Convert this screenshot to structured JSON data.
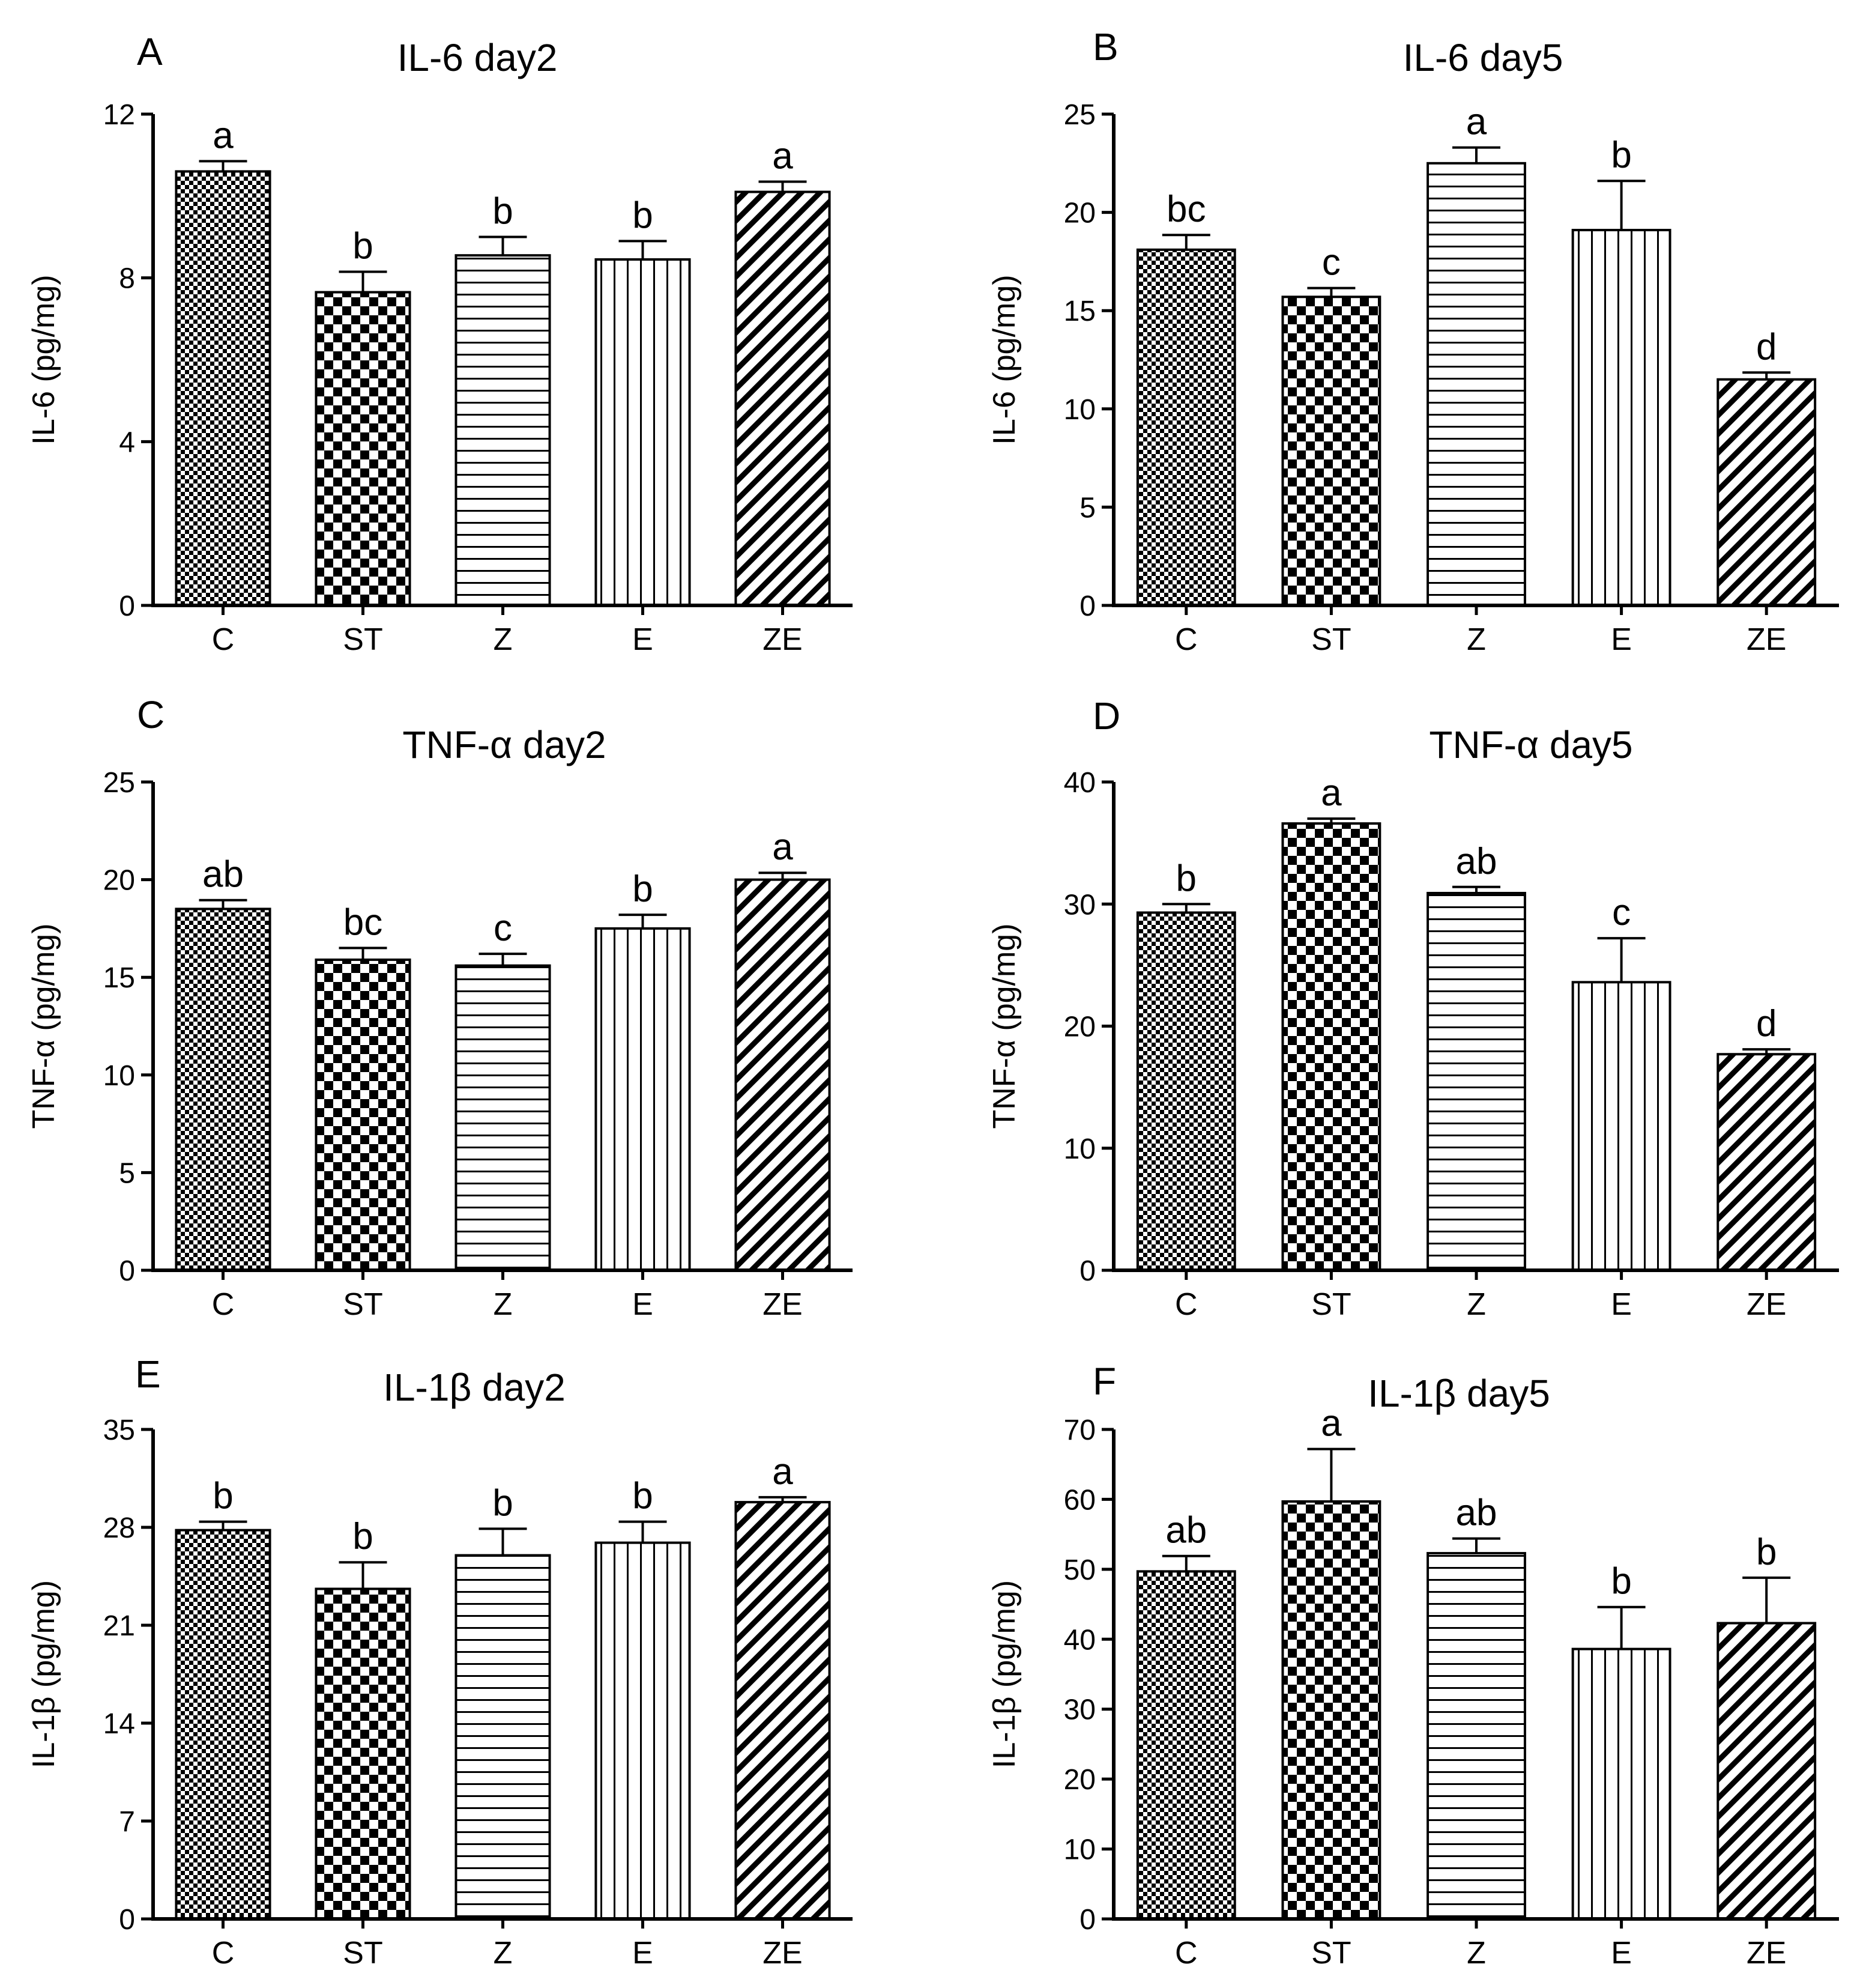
{
  "patterns": {
    "C": "fine-check",
    "ST": "coarse-check",
    "Z": "horizontal",
    "E": "vertical",
    "ZE": "diagonal"
  },
  "chart_data": [
    {
      "id": "A",
      "type": "bar",
      "panel_label": "A",
      "title": "IL-6 day2",
      "ylabel": "IL-6 (pg/mg)",
      "categories": [
        "C",
        "ST",
        "Z",
        "E",
        "ZE"
      ],
      "values": [
        10.6,
        7.65,
        8.55,
        8.45,
        10.1
      ],
      "errors": [
        0.25,
        0.5,
        0.45,
        0.45,
        0.25
      ],
      "significance": [
        "a",
        "b",
        "b",
        "b",
        "a"
      ],
      "ylim": [
        0,
        12
      ],
      "yticks": [
        0,
        4,
        8,
        12
      ]
    },
    {
      "id": "B",
      "type": "bar",
      "panel_label": "B",
      "title": "IL-6 day5",
      "ylabel": "IL-6 (pg/mg)",
      "categories": [
        "C",
        "ST",
        "Z",
        "E",
        "ZE"
      ],
      "values": [
        18.1,
        15.7,
        22.5,
        19.1,
        11.5
      ],
      "errors": [
        0.75,
        0.45,
        0.8,
        2.5,
        0.35
      ],
      "significance": [
        "bc",
        "c",
        "a",
        "b",
        "d"
      ],
      "ylim": [
        0,
        25
      ],
      "yticks": [
        0,
        5,
        10,
        15,
        20,
        25
      ]
    },
    {
      "id": "C",
      "type": "bar",
      "panel_label": "C",
      "title": "TNF-α day2",
      "ylabel": "TNF-α (pg/mg)",
      "categories": [
        "C",
        "ST",
        "Z",
        "E",
        "ZE"
      ],
      "values": [
        18.5,
        15.9,
        15.6,
        17.5,
        20.0
      ],
      "errors": [
        0.45,
        0.6,
        0.6,
        0.7,
        0.35
      ],
      "significance": [
        "ab",
        "bc",
        "c",
        "b",
        "a"
      ],
      "ylim": [
        0,
        25
      ],
      "yticks": [
        0,
        5,
        10,
        15,
        20,
        25
      ]
    },
    {
      "id": "D",
      "type": "bar",
      "panel_label": "D",
      "title": "TNF-α day5",
      "ylabel": "TNF-α (pg/mg)",
      "categories": [
        "C",
        "ST",
        "Z",
        "E",
        "ZE"
      ],
      "values": [
        29.3,
        36.6,
        30.9,
        23.6,
        17.7
      ],
      "errors": [
        0.7,
        0.4,
        0.5,
        3.6,
        0.4
      ],
      "significance": [
        "b",
        "a",
        "ab",
        "c",
        "d"
      ],
      "ylim": [
        0,
        40
      ],
      "yticks": [
        0,
        10,
        20,
        30,
        40
      ]
    },
    {
      "id": "E",
      "type": "bar",
      "panel_label": "E",
      "title": "IL-1β day2",
      "ylabel": "IL-1β (pg/mg)",
      "categories": [
        "C",
        "ST",
        "Z",
        "E",
        "ZE"
      ],
      "values": [
        27.8,
        23.6,
        26.0,
        26.9,
        29.8
      ],
      "errors": [
        0.6,
        1.9,
        1.9,
        1.5,
        0.35
      ],
      "significance": [
        "b",
        "b",
        "b",
        "b",
        "a"
      ],
      "ylim": [
        0,
        35
      ],
      "yticks": [
        0,
        7,
        14,
        21,
        28,
        35
      ]
    },
    {
      "id": "F",
      "type": "bar",
      "panel_label": "F",
      "title": "IL-1β day5",
      "ylabel": "IL-1β (pg/mg)",
      "categories": [
        "C",
        "ST",
        "Z",
        "E",
        "ZE"
      ],
      "values": [
        49.7,
        59.7,
        52.3,
        38.6,
        42.3
      ],
      "errors": [
        2.2,
        7.5,
        2.1,
        6.0,
        6.5
      ],
      "significance": [
        "ab",
        "a",
        "ab",
        "b",
        "b"
      ],
      "ylim": [
        0,
        70
      ],
      "yticks": [
        0,
        10,
        20,
        30,
        40,
        50,
        60,
        70
      ]
    }
  ]
}
